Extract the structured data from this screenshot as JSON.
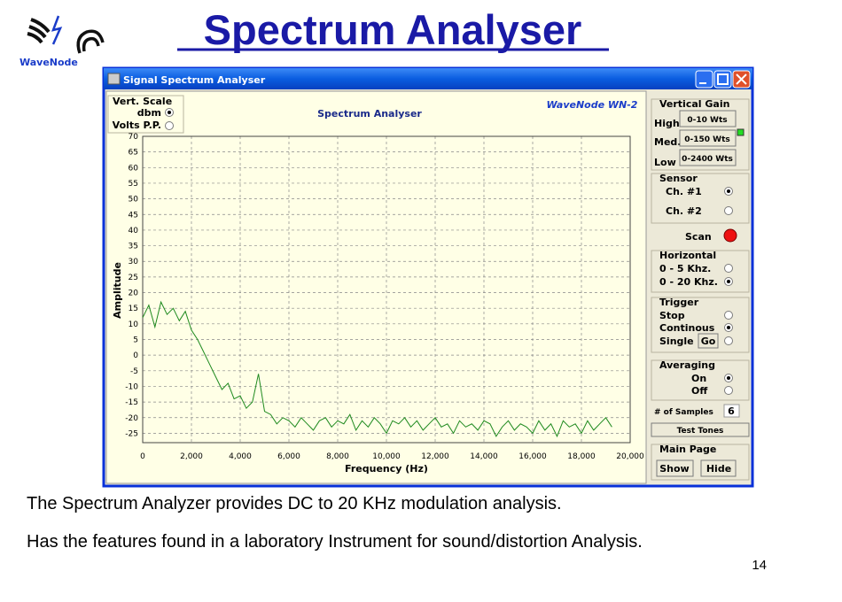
{
  "slide": {
    "title": "Spectrum Analyser",
    "logo": "WaveNode",
    "captions": [
      "The Spectrum Analyzer provides DC to 20 KHz modulation analysis.",
      "Has the features found in a laboratory Instrument for sound/distortion Analysis."
    ],
    "page_number": "14"
  },
  "window": {
    "title": "Signal Spectrum Analyser",
    "vert_scale": {
      "title": "Vert. Scale",
      "options": [
        "dbm",
        "Volts P.P."
      ],
      "selected": 0
    },
    "brand": "WaveNode WN-2",
    "vertical_gain": {
      "title": "Vertical Gain",
      "labels": [
        "High",
        "Med.",
        "Low"
      ],
      "buttons": [
        "0-10 Wts",
        "0-150 Wts",
        "0-2400 Wts"
      ]
    },
    "sensor": {
      "title": "Sensor",
      "options": [
        "Ch. #1",
        "Ch. #2"
      ],
      "selected": 0
    },
    "scan": "Scan",
    "horizontal": {
      "title": "Horizontal",
      "options": [
        "0 - 5 Khz.",
        "0 - 20 Khz."
      ],
      "selected": 1
    },
    "trigger": {
      "title": "Trigger",
      "options": [
        "Stop",
        "Continous",
        "Single"
      ],
      "selected": 1,
      "go": "Go"
    },
    "averaging": {
      "title": "Averaging",
      "options": [
        "On",
        "Off"
      ],
      "selected": 0
    },
    "samples": {
      "label": "# of Samples",
      "value": "6"
    },
    "test_tones": "Test Tones",
    "main_page": {
      "title": "Main Page",
      "buttons": [
        "Show",
        "Hide"
      ]
    }
  },
  "chart_data": {
    "type": "line",
    "title": "Spectrum Analyser",
    "x_label": "Frequency (Hz)",
    "y_label": "Amplitude",
    "color": "#1f8a1f",
    "grid": true,
    "x": [
      0,
      250,
      500,
      750,
      1000,
      1250,
      1500,
      1750,
      2000,
      2250,
      2500,
      2750,
      3000,
      3250,
      3500,
      3750,
      4000,
      4250,
      4500,
      4750,
      5000,
      5250,
      5500,
      5750,
      6000,
      6250,
      6500,
      6750,
      7000,
      7250,
      7500,
      7750,
      8000,
      8250,
      8500,
      8750,
      9000,
      9250,
      9500,
      9750,
      10000,
      10250,
      10500,
      10750,
      11000,
      11250,
      11500,
      11750,
      12000,
      12250,
      12500,
      12750,
      13000,
      13250,
      13500,
      13750,
      14000,
      14250,
      14500,
      14750,
      15000,
      15250,
      15500,
      15750,
      16000,
      16250,
      16500,
      16750,
      17000,
      17250,
      17500,
      17750,
      18000,
      18250,
      18500,
      18750,
      19000,
      19250
    ],
    "values": [
      12,
      16,
      9,
      17,
      13,
      15,
      11,
      14,
      8,
      5,
      1,
      -3,
      -7,
      -11,
      -9,
      -14,
      -13,
      -17,
      -15,
      -6,
      -18,
      -19,
      -22,
      -20,
      -21,
      -23,
      -20,
      -22,
      -24,
      -21,
      -20,
      -23,
      -21,
      -22,
      -19,
      -24,
      -21,
      -23,
      -20,
      -22,
      -25,
      -21,
      -22,
      -20,
      -23,
      -21,
      -24,
      -22,
      -20,
      -23,
      -22,
      -25,
      -21,
      -23,
      -22,
      -24,
      -21,
      -22,
      -26,
      -23,
      -21,
      -24,
      -22,
      -23,
      -25,
      -21,
      -24,
      -22,
      -26,
      -21,
      -23,
      -22,
      -25,
      -21,
      -24,
      -22,
      -20,
      -23
    ],
    "xlim": [
      0,
      20000
    ],
    "xticks": [
      0,
      {
        "value": 2000,
        "label": "2,000"
      },
      {
        "value": 4000,
        "label": "4,000"
      },
      {
        "value": 6000,
        "label": "6,000"
      },
      {
        "value": 8000,
        "label": "8,000"
      },
      {
        "value": 10000,
        "label": "10,000"
      },
      {
        "value": 12000,
        "label": "12,000"
      },
      {
        "value": 14000,
        "label": "14,000"
      },
      {
        "value": 16000,
        "label": "16,000"
      },
      {
        "value": 18000,
        "label": "18,000"
      },
      {
        "value": 20000,
        "label": "20,000"
      }
    ],
    "ylim": [
      -28,
      70
    ],
    "yticks": [
      -25,
      -20,
      -15,
      -10,
      -5,
      0,
      5,
      10,
      15,
      20,
      25,
      30,
      35,
      40,
      45,
      50,
      55,
      60,
      65,
      70
    ]
  }
}
